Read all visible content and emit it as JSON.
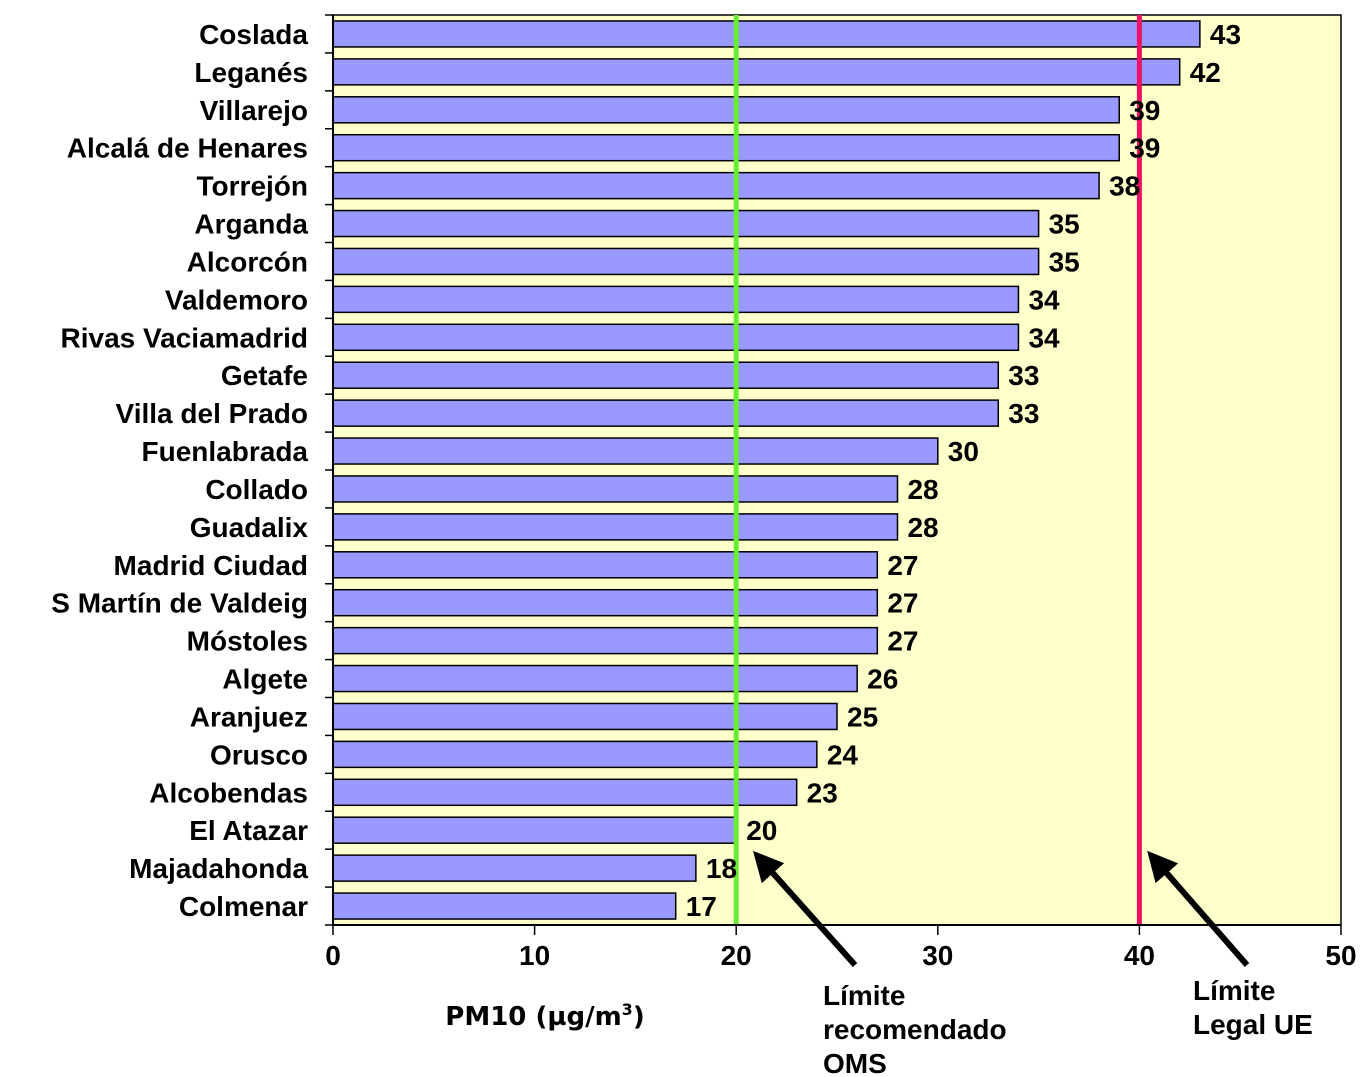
{
  "chart_data": {
    "type": "bar",
    "orientation": "horizontal",
    "categories": [
      "Coslada",
      "Leganés",
      "Villarejo",
      "Alcalá de Henares",
      "Torrejón",
      "Arganda",
      "Alcorcón",
      "Valdemoro",
      "Rivas Vaciamadrid",
      "Getafe",
      "Villa del Prado",
      "Fuenlabrada",
      "Collado",
      "Guadalix",
      "Madrid Ciudad",
      "S Martín de Valdeig",
      "Móstoles",
      "Algete",
      "Aranjuez",
      "Orusco",
      "Alcobendas",
      "El Atazar",
      "Majadahonda",
      "Colmenar"
    ],
    "values": [
      43,
      42,
      39,
      39,
      38,
      35,
      35,
      34,
      34,
      33,
      33,
      30,
      28,
      28,
      27,
      27,
      27,
      26,
      25,
      24,
      23,
      20,
      18,
      17
    ],
    "value_labels": [
      "43",
      "42",
      "39",
      "39",
      "38",
      "35",
      "35",
      "34",
      "34",
      "33",
      "33",
      "30",
      "28",
      "28",
      "27",
      "27",
      "27",
      "26",
      "25",
      "24",
      "23",
      "20",
      "18",
      "17"
    ],
    "xlabel": "PM10 (µg/m",
    "xlabel_superscript": "3",
    "xlabel_close": ")",
    "xlim": [
      0,
      50
    ],
    "xticks": [
      "0",
      "10",
      "20",
      "30",
      "40",
      "50"
    ],
    "grid": false,
    "legend": "none",
    "reference_lines": [
      {
        "value": 20,
        "label_lines": [
          "Límite",
          "recomendado",
          "OMS"
        ],
        "color": "#66ee33"
      },
      {
        "value": 40,
        "label_lines": [
          "Límite",
          "Legal UE"
        ],
        "color": "#ee1166"
      }
    ],
    "colors": {
      "bar_fill": "#9999ff",
      "bar_stroke": "#000000",
      "plot_background": "#ffffcc",
      "axis": "#000000"
    }
  }
}
